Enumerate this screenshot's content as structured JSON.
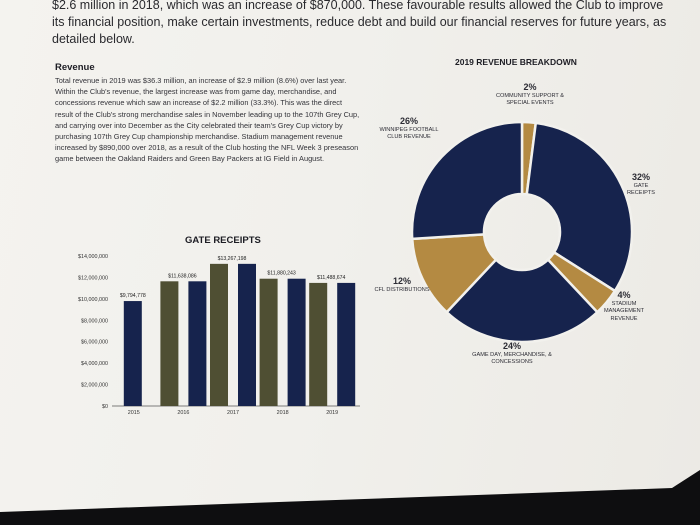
{
  "intro": "$2.6 million in 2018, which was an increase of $870,000. These favourable results allowed the Club to improve its financial position, make certain investments, reduce debt and build our financial reserves for future years, as detailed below.",
  "revenue": {
    "heading": "Revenue",
    "body": "Total revenue in 2019 was $36.3 million, an increase of $2.9 million (8.6%) over last year. Within the Club's revenue, the largest increase was from game day, merchandise, and concessions revenue which saw an increase of $2.2 million (33.3%). This was the direct result of the Club's strong merchandise sales in November leading up to the 107th Grey Cup, and carrying over into December as the City celebrated their team's Grey Cup victory by purchasing 107th Grey Cup championship merchandise. Stadium management revenue increased by $890,000 over 2018, as a result of the Club hosting the NFL Week 3 preseason game between the Oakland Raiders and Green Bay Packers at IG Field in August."
  },
  "colors": {
    "navy": "#16234d",
    "gold": "#b48a42",
    "olive": "#4f4f33"
  },
  "chart_data": [
    {
      "type": "pie",
      "title": "2019 REVENUE BREAKDOWN",
      "slices": [
        {
          "pct_label": "2%",
          "name": "COMMUNITY SUPPORT & SPECIAL EVENTS",
          "value": 2,
          "color": "#b48a42"
        },
        {
          "pct_label": "32%",
          "name": "GATE RECEIPTS",
          "value": 32,
          "color": "#16234d"
        },
        {
          "pct_label": "4%",
          "name": "STADIUM MANAGEMENT REVENUE",
          "value": 4,
          "color": "#b48a42"
        },
        {
          "pct_label": "24%",
          "name": "GAME DAY, MERCHANDISE, & CONCESSIONS",
          "value": 24,
          "color": "#16234d"
        },
        {
          "pct_label": "12%",
          "name": "CFL DISTRIBUTIONS",
          "value": 12,
          "color": "#b48a42"
        },
        {
          "pct_label": "26%",
          "name": "WINNIPEG FOOTBALL CLUB REVENUE",
          "value": 26,
          "color": "#16234d"
        }
      ]
    },
    {
      "type": "bar",
      "title": "GATE RECEIPTS",
      "categories": [
        "2015",
        "2016",
        "2017",
        "2018",
        "2019"
      ],
      "series": [
        {
          "values": [
            9794778,
            11638086,
            13267198,
            11880243,
            11488674
          ]
        },
        {
          "values": [
            null,
            11638086,
            13267198,
            11880243,
            11488674
          ]
        }
      ],
      "value_labels": [
        "$9,794,778",
        "$11,638,086",
        "$13,267,198",
        "$11,880,243",
        "$11,488,674"
      ],
      "series_colors": [
        "#16234d",
        "#4f4f33"
      ],
      "ylim": [
        0,
        14000000
      ],
      "yticks": [
        "$0",
        "$2,000,000",
        "$4,000,000",
        "$6,000,000",
        "$8,000,000",
        "$10,000,000",
        "$12,000,000",
        "$14,000,000"
      ],
      "grid": false
    }
  ]
}
